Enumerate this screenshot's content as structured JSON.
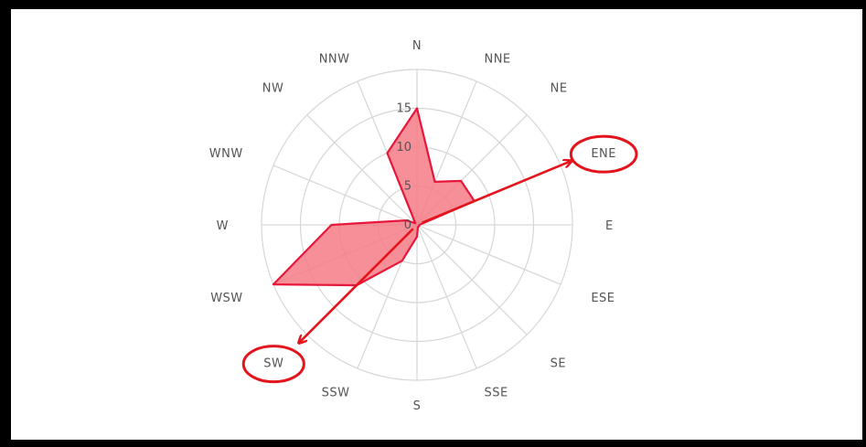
{
  "chart_data": {
    "type": "radar",
    "subtype": "wind-rose",
    "directions": [
      "N",
      "NNE",
      "NE",
      "ENE",
      "E",
      "ESE",
      "SE",
      "SSE",
      "S",
      "SSW",
      "SW",
      "WSW",
      "W",
      "WNW",
      "NW",
      "NNW"
    ],
    "values": [
      15,
      6,
      8,
      8,
      0.3,
      0.3,
      0.3,
      0.3,
      1.5,
      5,
      11,
      20,
      11,
      1.5,
      0.3,
      10
    ],
    "radial_ticks": [
      "0",
      "5",
      "10",
      "15"
    ],
    "radial_range": [
      0,
      20
    ],
    "grid": true,
    "series_color": "#f47b86",
    "series_line_color": "#e8163a",
    "annotations": {
      "highlighted_labels": [
        "ENE",
        "SW"
      ],
      "arrow_color": "#e3141c"
    }
  }
}
